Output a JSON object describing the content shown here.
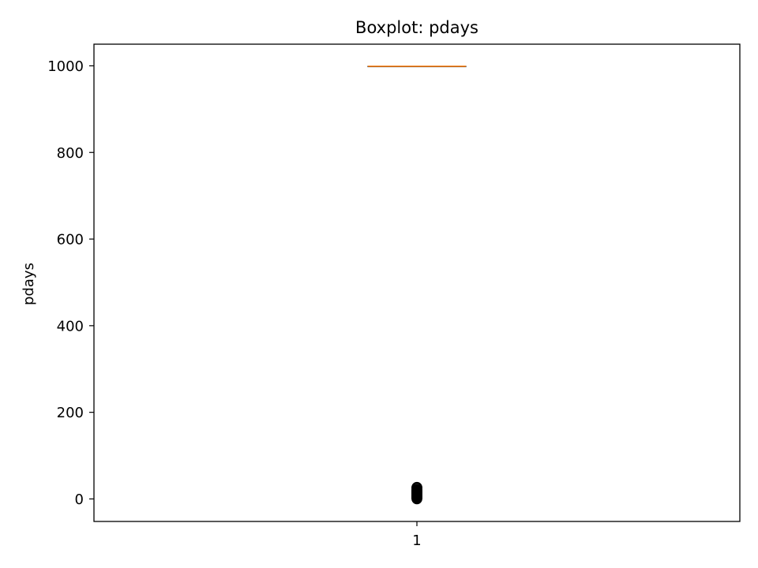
{
  "chart_data": {
    "type": "boxplot",
    "title": "Boxplot: pdays",
    "xlabel": "",
    "ylabel": "pdays",
    "categories": [
      "1"
    ],
    "ylim": [
      -52,
      1050
    ],
    "yticks": [
      0,
      200,
      400,
      600,
      800,
      1000
    ],
    "grid": false,
    "box": {
      "q1": 999,
      "median": 999,
      "q3": 999,
      "whisker_low": 999,
      "whisker_high": 999
    },
    "outliers": [
      0,
      1,
      2,
      3,
      4,
      5,
      6,
      7,
      8,
      9,
      10,
      11,
      12,
      13,
      14,
      15,
      16,
      17,
      18,
      19,
      20,
      21,
      22,
      25,
      26,
      27
    ],
    "colors": {
      "median": "#ff7f0e",
      "box": "#000000",
      "outlier": "#000000"
    }
  }
}
